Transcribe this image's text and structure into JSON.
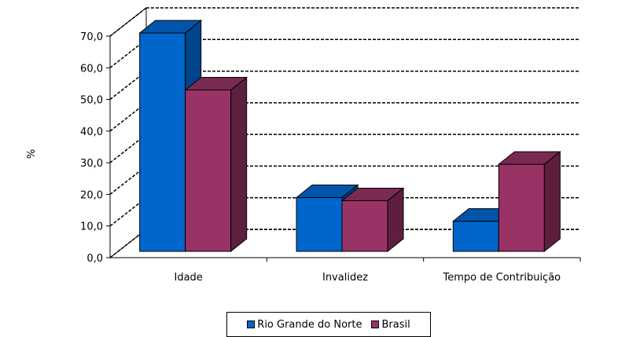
{
  "chart_data": {
    "type": "bar",
    "ylabel": "%",
    "categories": [
      "Idade",
      "Invalidez",
      "Tempo de Contribuição"
    ],
    "series": [
      {
        "name": "Rio Grande do Norte",
        "values": [
          71.0,
          19.0,
          11.5
        ],
        "color": "#0066CC",
        "side_color": "#00458A",
        "top_color": "#0055AA"
      },
      {
        "name": "Brasil",
        "values": [
          53.0,
          18.0,
          29.5
        ],
        "color": "#993366",
        "side_color": "#5E1F3F",
        "top_color": "#7A2A52"
      }
    ],
    "ylim": [
      0,
      70
    ],
    "yticks": [
      "0,0",
      "10,0",
      "20,0",
      "30,0",
      "40,0",
      "50,0",
      "60,0",
      "70,0"
    ],
    "grid": true,
    "legend_position": "bottom"
  }
}
